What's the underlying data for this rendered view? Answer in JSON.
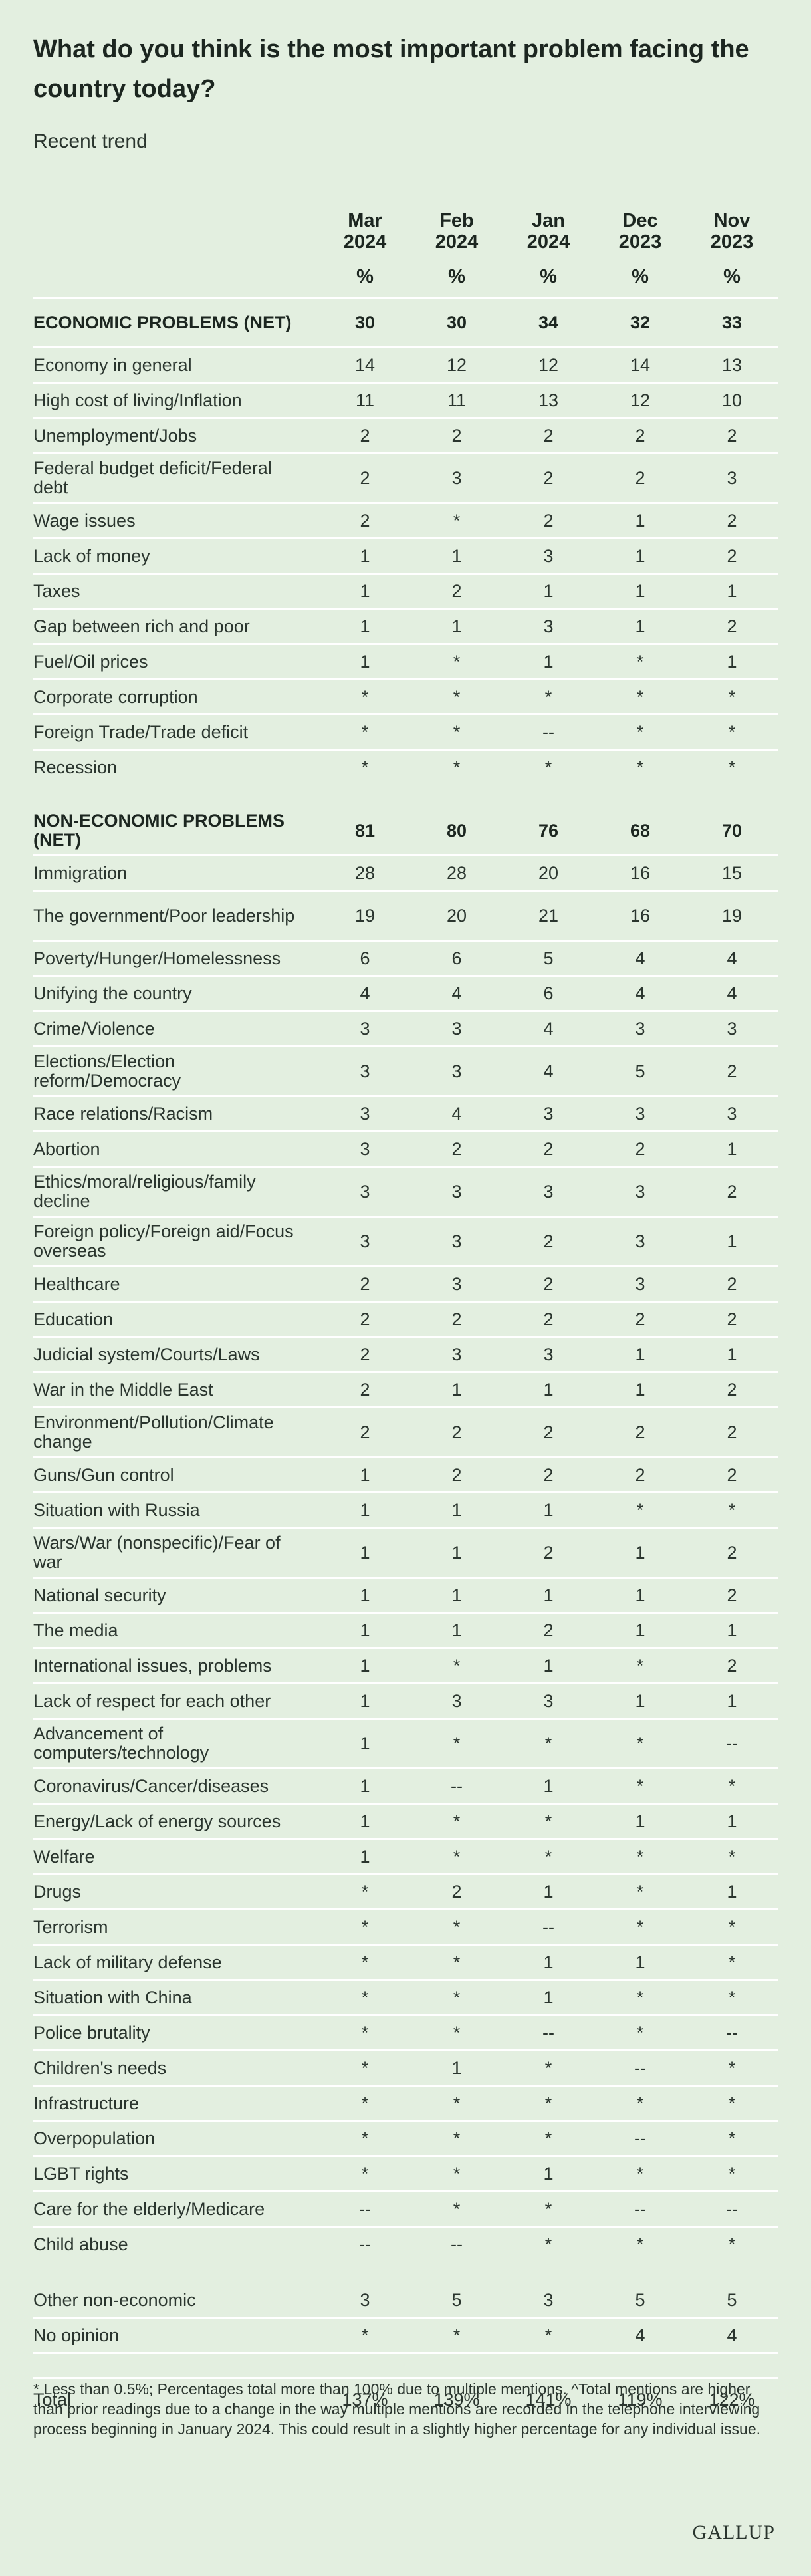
{
  "title": "What do you think is the most important problem facing the country today?",
  "subtitle": "Recent trend",
  "columns": [
    {
      "month": "Mar",
      "year": "2024",
      "unit": "%"
    },
    {
      "month": "Feb",
      "year": "2024",
      "unit": "%"
    },
    {
      "month": "Jan",
      "year": "2024",
      "unit": "%"
    },
    {
      "month": "Dec",
      "year": "2023",
      "unit": "%"
    },
    {
      "month": "Nov",
      "year": "2023",
      "unit": "%"
    }
  ],
  "rows": [
    {
      "label": "ECONOMIC PROBLEMS (NET)",
      "values": [
        "30",
        "30",
        "34",
        "32",
        "33"
      ],
      "net": true,
      "tall": true
    },
    {
      "label": "Economy in general",
      "values": [
        "14",
        "12",
        "12",
        "14",
        "13"
      ]
    },
    {
      "label": "High cost of living/Inflation",
      "values": [
        "11",
        "11",
        "13",
        "12",
        "10"
      ]
    },
    {
      "label": "Unemployment/Jobs",
      "values": [
        "2",
        "2",
        "2",
        "2",
        "2"
      ]
    },
    {
      "label": "Federal budget deficit/Federal debt",
      "values": [
        "2",
        "3",
        "2",
        "2",
        "3"
      ],
      "tall": true
    },
    {
      "label": "Wage issues",
      "values": [
        "2",
        "*",
        "2",
        "1",
        "2"
      ]
    },
    {
      "label": "Lack of money",
      "values": [
        "1",
        "1",
        "3",
        "1",
        "2"
      ]
    },
    {
      "label": "Taxes",
      "values": [
        "1",
        "2",
        "1",
        "1",
        "1"
      ]
    },
    {
      "label": "Gap between rich and poor",
      "values": [
        "1",
        "1",
        "3",
        "1",
        "2"
      ]
    },
    {
      "label": "Fuel/Oil prices",
      "values": [
        "1",
        "*",
        "1",
        "*",
        "1"
      ]
    },
    {
      "label": "Corporate corruption",
      "values": [
        "*",
        "*",
        "*",
        "*",
        "*"
      ]
    },
    {
      "label": "Foreign Trade/Trade deficit",
      "values": [
        "*",
        "*",
        "--",
        "*",
        "*"
      ]
    },
    {
      "label": "Recession",
      "values": [
        "*",
        "*",
        "*",
        "*",
        "*"
      ],
      "noline": true
    },
    {
      "gap": true
    },
    {
      "label": "NON-ECONOMIC PROBLEMS (NET)",
      "values": [
        "81",
        "80",
        "76",
        "68",
        "70"
      ],
      "net": true,
      "tall": true
    },
    {
      "label": "Immigration",
      "values": [
        "28",
        "28",
        "20",
        "16",
        "15"
      ]
    },
    {
      "label": "The government/Poor leadership",
      "values": [
        "19",
        "20",
        "21",
        "16",
        "19"
      ],
      "tall": true
    },
    {
      "label": "Poverty/Hunger/Homelessness",
      "values": [
        "6",
        "6",
        "5",
        "4",
        "4"
      ]
    },
    {
      "label": "Unifying the country",
      "values": [
        "4",
        "4",
        "6",
        "4",
        "4"
      ]
    },
    {
      "label": "Crime/Violence",
      "values": [
        "3",
        "3",
        "4",
        "3",
        "3"
      ]
    },
    {
      "label": "Elections/Election reform/Democracy",
      "values": [
        "3",
        "3",
        "4",
        "5",
        "2"
      ],
      "tall": true
    },
    {
      "label": "Race relations/Racism",
      "values": [
        "3",
        "4",
        "3",
        "3",
        "3"
      ]
    },
    {
      "label": "Abortion",
      "values": [
        "3",
        "2",
        "2",
        "2",
        "1"
      ]
    },
    {
      "label": "Ethics/moral/religious/family decline",
      "values": [
        "3",
        "3",
        "3",
        "3",
        "2"
      ],
      "tall": true
    },
    {
      "label": "Foreign policy/Foreign aid/Focus overseas",
      "values": [
        "3",
        "3",
        "2",
        "3",
        "1"
      ],
      "tall": true
    },
    {
      "label": "Healthcare",
      "values": [
        "2",
        "3",
        "2",
        "3",
        "2"
      ]
    },
    {
      "label": "Education",
      "values": [
        "2",
        "2",
        "2",
        "2",
        "2"
      ]
    },
    {
      "label": "Judicial system/Courts/Laws",
      "values": [
        "2",
        "3",
        "3",
        "1",
        "1"
      ]
    },
    {
      "label": "War in the Middle East",
      "values": [
        "2",
        "1",
        "1",
        "1",
        "2"
      ]
    },
    {
      "label": "Environment/Pollution/Climate change",
      "values": [
        "2",
        "2",
        "2",
        "2",
        "2"
      ],
      "tall": true
    },
    {
      "label": "Guns/Gun control",
      "values": [
        "1",
        "2",
        "2",
        "2",
        "2"
      ]
    },
    {
      "label": "Situation with Russia",
      "values": [
        "1",
        "1",
        "1",
        "*",
        "*"
      ]
    },
    {
      "label": "Wars/War (nonspecific)/Fear of war",
      "values": [
        "1",
        "1",
        "2",
        "1",
        "2"
      ],
      "tall": true
    },
    {
      "label": "National security",
      "values": [
        "1",
        "1",
        "1",
        "1",
        "2"
      ]
    },
    {
      "label": "The media",
      "values": [
        "1",
        "1",
        "2",
        "1",
        "1"
      ]
    },
    {
      "label": "International issues, problems",
      "values": [
        "1",
        "*",
        "1",
        "*",
        "2"
      ]
    },
    {
      "label": "Lack of respect for each other",
      "values": [
        "1",
        "3",
        "3",
        "1",
        "1"
      ]
    },
    {
      "label": "Advancement of computers/technology",
      "values": [
        "1",
        "*",
        "*",
        "*",
        "--"
      ],
      "tall": true
    },
    {
      "label": "Coronavirus/Cancer/diseases",
      "values": [
        "1",
        "--",
        "1",
        "*",
        "*"
      ]
    },
    {
      "label": "Energy/Lack of energy sources",
      "values": [
        "1",
        "*",
        "*",
        "1",
        "1"
      ]
    },
    {
      "label": "Welfare",
      "values": [
        "1",
        "*",
        "*",
        "*",
        "*"
      ]
    },
    {
      "label": "Drugs",
      "values": [
        "*",
        "2",
        "1",
        "*",
        "1"
      ]
    },
    {
      "label": "Terrorism",
      "values": [
        "*",
        "*",
        "--",
        "*",
        "*"
      ]
    },
    {
      "label": "Lack of military defense",
      "values": [
        "*",
        "*",
        "1",
        "1",
        "*"
      ]
    },
    {
      "label": "Situation with China",
      "values": [
        "*",
        "*",
        "1",
        "*",
        "*"
      ]
    },
    {
      "label": "Police brutality",
      "values": [
        "*",
        "*",
        "--",
        "*",
        "--"
      ]
    },
    {
      "label": "Children's needs",
      "values": [
        "*",
        "1",
        "*",
        "--",
        "*"
      ]
    },
    {
      "label": "Infrastructure",
      "values": [
        "*",
        "*",
        "*",
        "*",
        "*"
      ]
    },
    {
      "label": "Overpopulation",
      "values": [
        "*",
        "*",
        "*",
        "--",
        "*"
      ]
    },
    {
      "label": "LGBT rights",
      "values": [
        "*",
        "*",
        "1",
        "*",
        "*"
      ]
    },
    {
      "label": "Care for the elderly/Medicare",
      "values": [
        "--",
        "*",
        "*",
        "--",
        "--"
      ]
    },
    {
      "label": "Child abuse",
      "values": [
        "--",
        "--",
        "*",
        "*",
        "*"
      ],
      "noline": true
    },
    {
      "gap": true
    },
    {
      "label": "Other non-economic",
      "values": [
        "3",
        "5",
        "3",
        "5",
        "5"
      ]
    },
    {
      "label": "No opinion",
      "values": [
        "*",
        "*",
        "*",
        "4",
        "4"
      ]
    },
    {
      "gap": true,
      "line": true
    },
    {
      "label": "Total",
      "values": [
        "137%",
        "139%",
        "141%",
        "119%",
        "122%"
      ],
      "total": true,
      "noline": true
    }
  ],
  "footnote": "* Less than 0.5%; Percentages total more than 100% due to multiple mentions. ^Total mentions are higher than prior readings due to a change in the way multiple mentions are recorded in the telephone interviewing process beginning in January 2024. This could result in a slightly higher percentage for any individual issue.",
  "source_logo": "GALLUP"
}
